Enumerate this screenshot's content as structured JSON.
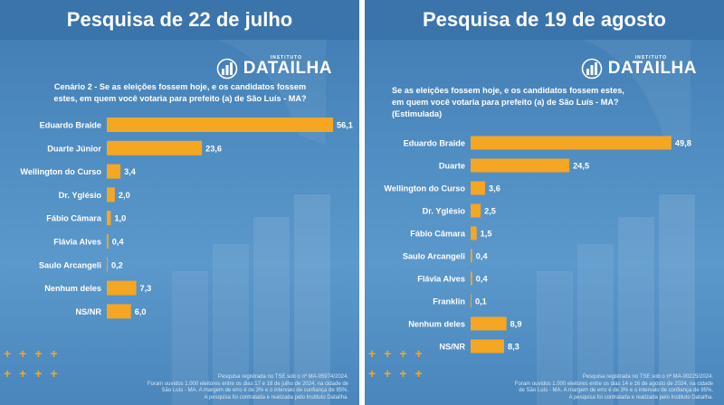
{
  "chart_data": [
    {
      "type": "bar",
      "title": "Pesquisa de 22 de julho",
      "subtitle": "Cenário 2 - Se as eleições fossem hoje, e os candidatos fossem estes, em quem você votaria para prefeito (a) de São Luís - MA?",
      "categories": [
        "Eduardo Braide",
        "Duarte Júnior",
        "Wellington do Curso",
        "Dr. Yglésio",
        "Fábio Câmara",
        "Flávia Alves",
        "Saulo Arcangeli",
        "Nenhum deles",
        "NS/NR"
      ],
      "values": [
        56.1,
        23.6,
        3.4,
        2.0,
        1.0,
        0.4,
        0.2,
        7.3,
        6.0
      ],
      "value_labels": [
        "56,1",
        "23,6",
        "3,4",
        "2,0",
        "1,0",
        "0,4",
        "0,2",
        "7,3",
        "6,0"
      ],
      "orientation": "horizontal",
      "bar_color": "#f5a623",
      "legend": "none",
      "grid": false
    },
    {
      "type": "bar",
      "title": "Pesquisa de 19 de agosto",
      "subtitle": "Se as eleições fossem hoje, e os candidatos fossem estes, em quem você votaria para prefeito (a) de São Luís - MA? (Estimulada)",
      "categories": [
        "Eduardo Braide",
        "Duarte",
        "Wellington do Curso",
        "Dr. Yglésio",
        "Fábio Câmara",
        "Saulo Arcangeli",
        "Flávia Alves",
        "Franklin",
        "Nenhum deles",
        "NS/NR"
      ],
      "values": [
        49.8,
        24.5,
        3.6,
        2.5,
        1.5,
        0.4,
        0.4,
        0.1,
        8.9,
        8.3
      ],
      "value_labels": [
        "49,8",
        "24,5",
        "3,6",
        "2,5",
        "1,5",
        "0,4",
        "0,4",
        "0,1",
        "8,9",
        "8,3"
      ],
      "orientation": "horizontal",
      "bar_color": "#f5a623",
      "legend": "none",
      "grid": false
    }
  ],
  "panels": [
    {
      "title": "Pesquisa de 22 de julho",
      "logo_small": "INSTITUTO",
      "logo_big": "DATAILHA",
      "question_lines": [
        "Cenário 2 - Se as eleições fossem hoje, e os candidatos fossem",
        "estes, em quem você votaria para prefeito (a) de São Luís - MA?"
      ],
      "footer_lines": [
        "Pesquisa registrada no TSE sob o nº MA-05974/2024.",
        "Foram ouvidos 1.000 eleitores entre os dias 17 e 18 de julho de 2024, na cidade de",
        "São Luís - MA. A margem de erro é de 3% e o intervalo de confiança de 95%.",
        "A pesquisa foi contratada e realizada pelo Instituto Datailha."
      ]
    },
    {
      "title": "Pesquisa de 19 de agosto",
      "logo_small": "INSTITUTO",
      "logo_big": "DATAILHA",
      "question_lines": [
        "Se as eleições fossem hoje, e os candidatos fossem estes,",
        "em quem você votaria para prefeito (a) de São Luís - MA?",
        "(Estimulada)"
      ],
      "footer_lines": [
        "Pesquisa registrada no TSE sob o nº MA-00225/2024.",
        "Foram ouvidos 1.000 eleitores entre os dias 14 e 16 de agosto de 2024, na cidade",
        "de São Luís - MA. A margem de erro é de 3% e o intervalo de confiança de 95%.",
        "A pesquisa foi contratada e realizada pelo Instituto Datailha."
      ]
    }
  ],
  "colors": {
    "bar": "#f5a623",
    "panel_background": "#4f8cc1",
    "title_bar": "#3b73ab",
    "text": "#ffffff"
  },
  "icons": {
    "logo": "datailha-logo-icon",
    "decoration": "plus-pattern-icon"
  }
}
